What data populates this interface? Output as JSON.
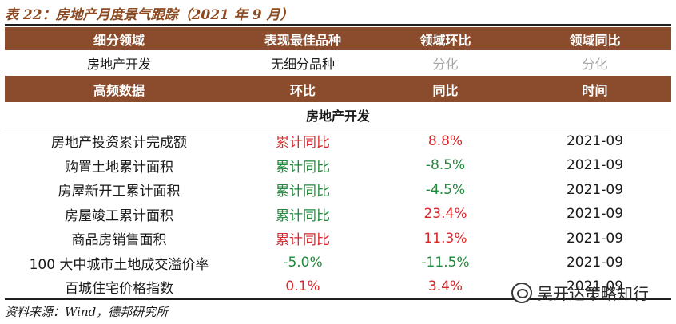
{
  "title": "表 22：房地产月度景气跟踪（2021 年 9 月）",
  "header1": [
    "细分领域",
    "表现最佳品种",
    "领域环比",
    "领域同比"
  ],
  "sector_row": [
    "房地产开发",
    "无细分品种",
    "分化",
    "分化"
  ],
  "header2": [
    "高频数据",
    "环比",
    "同比",
    "时间"
  ],
  "section_label": "房地产开发",
  "rows": [
    {
      "name": "房地产投资累计完成额",
      "mom": "累计同比",
      "yoy": "8.8%",
      "time": "2021-09",
      "mom_color": "#d8262b",
      "yoy_color": "#d8262b"
    },
    {
      "name": "购置土地累计面积",
      "mom": "累计同比",
      "yoy": "-8.5%",
      "time": "2021-09",
      "mom_color": "#1f8a3a",
      "yoy_color": "#1f8a3a"
    },
    {
      "name": "房屋新开工累计面积",
      "mom": "累计同比",
      "yoy": "-4.5%",
      "time": "2021-09",
      "mom_color": "#1f8a3a",
      "yoy_color": "#1f8a3a"
    },
    {
      "name": "房屋竣工累计面积",
      "mom": "累计同比",
      "yoy": "23.4%",
      "time": "2021-09",
      "mom_color": "#1f8a3a",
      "yoy_color": "#d8262b"
    },
    {
      "name": "商品房销售面积",
      "mom": "累计同比",
      "yoy": "11.3%",
      "time": "2021-09",
      "mom_color": "#d8262b",
      "yoy_color": "#d8262b"
    },
    {
      "name": "100 大中城市土地成交溢价率",
      "mom": "-5.0%",
      "yoy": "-11.5%",
      "time": "2021-09",
      "mom_color": "#1f8a3a",
      "yoy_color": "#1f8a3a"
    },
    {
      "name": "百城住宅价格指数",
      "mom": "0.1%",
      "yoy": "3.4%",
      "time": "2021-09",
      "mom_color": "#d8262b",
      "yoy_color": "#d8262b"
    }
  ],
  "source": "资料来源：Wind，德邦研究所",
  "watermark": "吴开达策略知行",
  "colors": {
    "header_bg": "#8a4c2c",
    "title": "#8c4a22",
    "positive": "#d8262b",
    "negative": "#1f8a3a"
  }
}
